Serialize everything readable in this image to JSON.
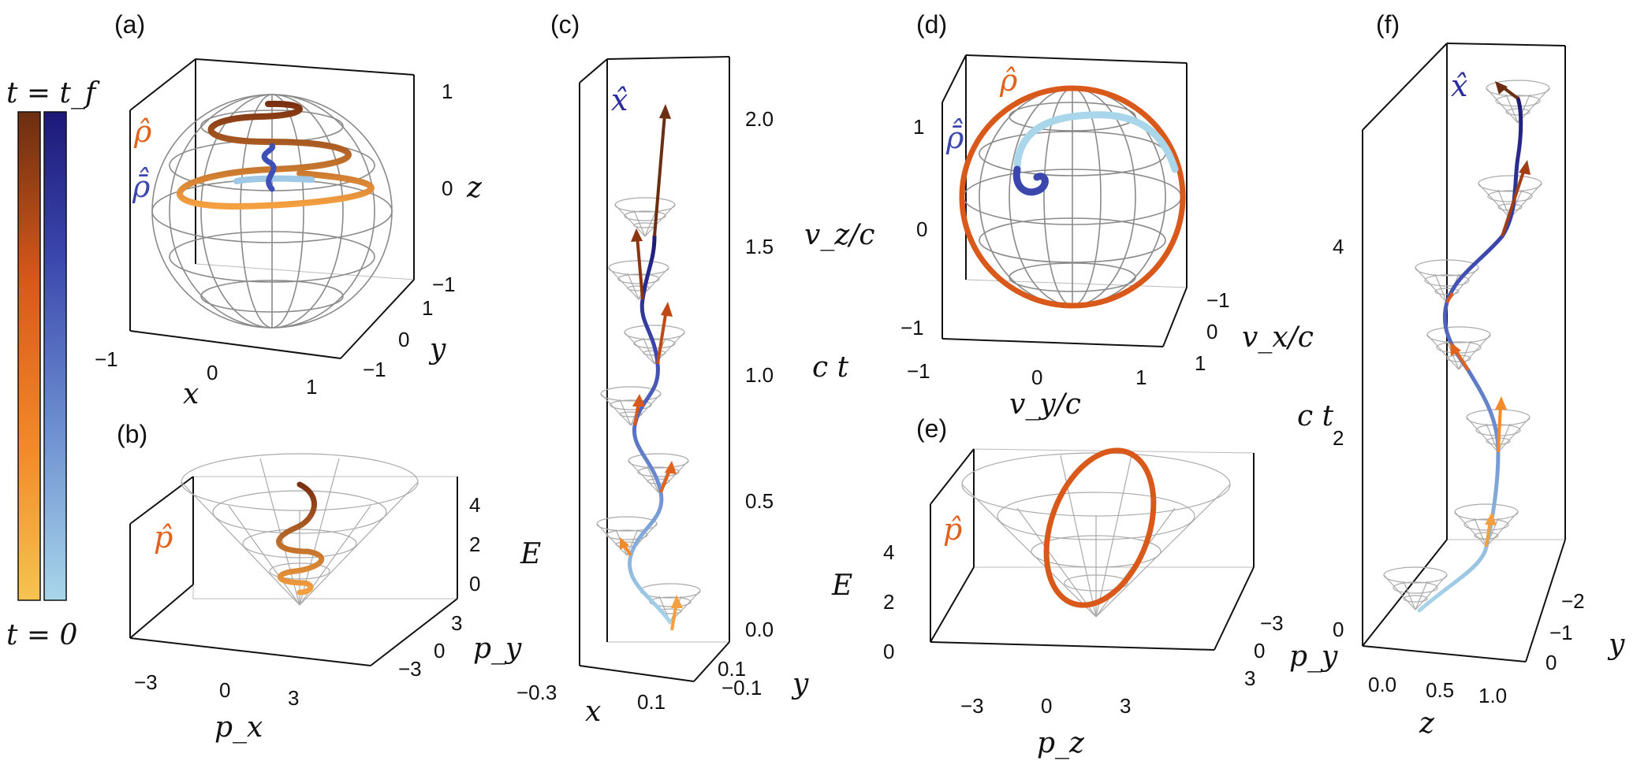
{
  "colorbar": {
    "top_label": "t = t_f",
    "bottom_label": "t = 0",
    "orange_gradient": [
      "#f5c451",
      "#f38b2a",
      "#d9591a",
      "#6b2e12"
    ],
    "blue_gradient": [
      "#a9d6ea",
      "#6d8fd0",
      "#3b47ad",
      "#1c1978"
    ]
  },
  "panels": {
    "a": {
      "label": "(a)",
      "symbols": [
        "ρ̂",
        "ρ̄̂"
      ],
      "x_axis": {
        "label": "x",
        "ticks": [
          "−1",
          "0",
          "1"
        ]
      },
      "y_axis": {
        "label": "y",
        "ticks": [
          "1",
          "0",
          "−1"
        ]
      },
      "z_axis": {
        "label": "z",
        "ticks": [
          "1",
          "0",
          "−1"
        ]
      }
    },
    "b": {
      "label": "(b)",
      "symbols": [
        "p̂"
      ],
      "x_axis": {
        "label": "p_x",
        "ticks": [
          "−3",
          "0",
          "3"
        ]
      },
      "y_axis": {
        "label": "p_y",
        "ticks": [
          "3",
          "0",
          "−3"
        ]
      },
      "z_axis": {
        "label": "E",
        "ticks": [
          "4",
          "2",
          "0"
        ]
      }
    },
    "c": {
      "label": "(c)",
      "symbols": [
        "x̂"
      ],
      "x_axis": {
        "label": "x",
        "ticks": [
          "−0.3",
          "0.1"
        ]
      },
      "y_axis": {
        "label": "y",
        "ticks": [
          "0.1",
          "−0.1"
        ]
      },
      "z_axis": {
        "label": "c t",
        "ticks": [
          "2.0",
          "1.5",
          "1.0",
          "0.5",
          "0.0"
        ]
      }
    },
    "d": {
      "label": "(d)",
      "symbols": [
        "ρ̂",
        "ρ̄̂"
      ],
      "x_axis": {
        "label": "v_y/c",
        "ticks": [
          "−1",
          "0",
          "1"
        ]
      },
      "y_axis": {
        "label": "v_x/c",
        "ticks": [
          "−1",
          "0",
          "1"
        ]
      },
      "z_axis": {
        "label": "v_z/c",
        "ticks": [
          "1",
          "0",
          "−1"
        ]
      }
    },
    "e": {
      "label": "(e)",
      "symbols": [
        "p̂"
      ],
      "x_axis": {
        "label": "p_z",
        "ticks": [
          "−3",
          "0",
          "3"
        ]
      },
      "y_axis": {
        "label": "p_y",
        "ticks": [
          "−3",
          "0",
          "3"
        ]
      },
      "z_axis": {
        "label": "E",
        "ticks": [
          "4",
          "2",
          "0"
        ]
      }
    },
    "f": {
      "label": "(f)",
      "symbols": [
        "x̂"
      ],
      "x_axis": {
        "label": "z",
        "ticks": [
          "0.0",
          "0.5",
          "1.0"
        ]
      },
      "y_axis": {
        "label": "y",
        "ticks": [
          "−2",
          "−1",
          "0"
        ]
      },
      "z_axis": {
        "label": "c t",
        "ticks": [
          "4",
          "2",
          "0"
        ]
      }
    }
  }
}
